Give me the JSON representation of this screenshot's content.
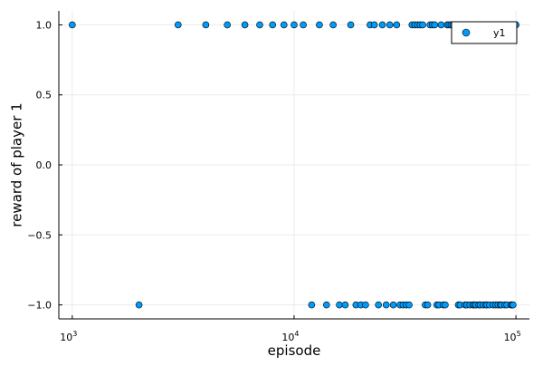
{
  "chart_data": {
    "type": "scatter",
    "title": "",
    "xlabel": "episode",
    "ylabel": "reward of player 1",
    "x_scale": "log10",
    "xlim": [
      870,
      115000
    ],
    "ylim": [
      -1.1,
      1.1
    ],
    "grid": true,
    "legend_position": "top-right",
    "x_ticks": [
      {
        "value": 1000,
        "base": "10",
        "exp": "3"
      },
      {
        "value": 10000,
        "base": "10",
        "exp": "4"
      },
      {
        "value": 100000,
        "base": "10",
        "exp": "5"
      }
    ],
    "y_ticks": [
      {
        "value": 1.0,
        "label": "1.0"
      },
      {
        "value": 0.5,
        "label": "0.5"
      },
      {
        "value": 0.0,
        "label": "0.0"
      },
      {
        "value": -0.5,
        "label": "−0.5"
      },
      {
        "value": -1.0,
        "label": "−1.0"
      }
    ],
    "colors": {
      "series": "#009AFA",
      "grid": "#EBEBEB",
      "axis": "#000000"
    },
    "series": [
      {
        "name": "y1",
        "points": [
          [
            1000,
            1
          ],
          [
            2000,
            -1
          ],
          [
            3000,
            1
          ],
          [
            4000,
            1
          ],
          [
            5000,
            1
          ],
          [
            6000,
            1
          ],
          [
            7000,
            1
          ],
          [
            8000,
            1
          ],
          [
            9000,
            1
          ],
          [
            10000,
            1
          ],
          [
            11000,
            1
          ],
          [
            12000,
            -1
          ],
          [
            13000,
            1
          ],
          [
            14000,
            -1
          ],
          [
            15000,
            1
          ],
          [
            16000,
            -1
          ],
          [
            17000,
            -1
          ],
          [
            18000,
            1
          ],
          [
            19000,
            -1
          ],
          [
            20000,
            -1
          ],
          [
            21000,
            -1
          ],
          [
            22000,
            1
          ],
          [
            23000,
            1
          ],
          [
            24000,
            -1
          ],
          [
            25000,
            1
          ],
          [
            26000,
            -1
          ],
          [
            27000,
            1
          ],
          [
            28000,
            -1
          ],
          [
            29000,
            1
          ],
          [
            30000,
            -1
          ],
          [
            31000,
            -1
          ],
          [
            32000,
            -1
          ],
          [
            33000,
            -1
          ],
          [
            34000,
            1
          ],
          [
            35000,
            1
          ],
          [
            36000,
            1
          ],
          [
            37000,
            1
          ],
          [
            38000,
            1
          ],
          [
            39000,
            -1
          ],
          [
            40000,
            -1
          ],
          [
            41000,
            1
          ],
          [
            42000,
            1
          ],
          [
            43000,
            1
          ],
          [
            44000,
            -1
          ],
          [
            45000,
            -1
          ],
          [
            46000,
            1
          ],
          [
            47000,
            -1
          ],
          [
            48000,
            -1
          ],
          [
            49000,
            1
          ],
          [
            50000,
            1
          ],
          [
            51000,
            1
          ],
          [
            52000,
            1
          ],
          [
            53000,
            1
          ],
          [
            54000,
            1
          ],
          [
            55000,
            -1
          ],
          [
            56000,
            -1
          ],
          [
            57000,
            1
          ],
          [
            58000,
            1
          ],
          [
            59000,
            -1
          ],
          [
            60000,
            -1
          ],
          [
            61000,
            1
          ],
          [
            62000,
            -1
          ],
          [
            63000,
            1
          ],
          [
            64000,
            -1
          ],
          [
            65000,
            -1
          ],
          [
            66000,
            -1
          ],
          [
            67000,
            1
          ],
          [
            68000,
            -1
          ],
          [
            69000,
            -1
          ],
          [
            70000,
            1
          ],
          [
            71000,
            -1
          ],
          [
            72000,
            1
          ],
          [
            73000,
            -1
          ],
          [
            74000,
            -1
          ],
          [
            75000,
            1
          ],
          [
            76000,
            -1
          ],
          [
            77000,
            1
          ],
          [
            78000,
            1
          ],
          [
            79000,
            -1
          ],
          [
            80000,
            1
          ],
          [
            81000,
            -1
          ],
          [
            82000,
            1
          ],
          [
            83000,
            -1
          ],
          [
            84000,
            1
          ],
          [
            85000,
            -1
          ],
          [
            86000,
            -1
          ],
          [
            87000,
            1
          ],
          [
            88000,
            1
          ],
          [
            89000,
            -1
          ],
          [
            90000,
            1
          ],
          [
            91000,
            -1
          ],
          [
            92000,
            1
          ],
          [
            93000,
            1
          ],
          [
            94000,
            1
          ],
          [
            95000,
            -1
          ],
          [
            96000,
            -1
          ],
          [
            97000,
            -1
          ],
          [
            98000,
            1
          ],
          [
            99000,
            1
          ],
          [
            100000,
            1
          ]
        ]
      }
    ]
  }
}
